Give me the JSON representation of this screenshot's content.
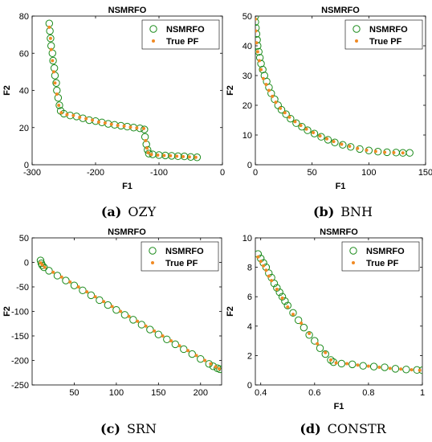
{
  "captions": [
    {
      "label": "(a)",
      "name": "OZY"
    },
    {
      "label": "(b)",
      "name": "BNH"
    },
    {
      "label": "(c)",
      "name": "SRN"
    },
    {
      "label": "(d)",
      "name": "CONSTR"
    }
  ],
  "colors": {
    "nsmrfo": "#1a8a1a",
    "true_pf": "#f08a24",
    "axis": "#000000"
  },
  "chart_data": [
    {
      "type": "scatter",
      "title": "NSMRFO",
      "xlabel": "F1",
      "ylabel": "F2",
      "xlim": [
        -300,
        0
      ],
      "ylim": [
        0,
        80
      ],
      "xticks": [
        "-300",
        "-200",
        "-100",
        "0"
      ],
      "yticks": [
        "0",
        "20",
        "40",
        "60",
        "80"
      ],
      "legend": "top-right",
      "series": [
        {
          "name": "NSMRFO",
          "marker": "open-circle",
          "points": [
            [
              -273,
              76
            ],
            [
              -272,
              72
            ],
            [
              -271,
              68
            ],
            [
              -270,
              64
            ],
            [
              -268,
              60
            ],
            [
              -267,
              56
            ],
            [
              -265,
              52
            ],
            [
              -264,
              48
            ],
            [
              -262,
              44
            ],
            [
              -261,
              40
            ],
            [
              -259,
              36
            ],
            [
              -257,
              32
            ],
            [
              -255,
              29
            ],
            [
              -250,
              27.5
            ],
            [
              -240,
              26.5
            ],
            [
              -230,
              26
            ],
            [
              -220,
              25
            ],
            [
              -210,
              24
            ],
            [
              -200,
              23.5
            ],
            [
              -190,
              22.8
            ],
            [
              -180,
              22
            ],
            [
              -170,
              21.5
            ],
            [
              -160,
              21
            ],
            [
              -150,
              20.5
            ],
            [
              -140,
              20
            ],
            [
              -130,
              19.6
            ],
            [
              -123,
              19
            ],
            [
              -122,
              15
            ],
            [
              -120,
              11
            ],
            [
              -118,
              8
            ],
            [
              -116,
              6
            ],
            [
              -110,
              5.6
            ],
            [
              -100,
              5.2
            ],
            [
              -90,
              5
            ],
            [
              -80,
              4.8
            ],
            [
              -70,
              4.6
            ],
            [
              -60,
              4.5
            ],
            [
              -50,
              4.2
            ],
            [
              -40,
              4
            ]
          ]
        },
        {
          "name": "True PF",
          "marker": "dot",
          "points": [
            [
              -273,
              74
            ],
            [
              -271,
              68
            ],
            [
              -270,
              62
            ],
            [
              -268,
              56
            ],
            [
              -266,
              50
            ],
            [
              -264,
              44
            ],
            [
              -261,
              38
            ],
            [
              -258,
              32
            ],
            [
              -254,
              28
            ],
            [
              -245,
              27
            ],
            [
              -235,
              26.5
            ],
            [
              -225,
              25.5
            ],
            [
              -215,
              24.8
            ],
            [
              -205,
              24
            ],
            [
              -195,
              23
            ],
            [
              -185,
              22.5
            ],
            [
              -175,
              21.8
            ],
            [
              -165,
              21.2
            ],
            [
              -155,
              20.8
            ],
            [
              -145,
              20.2
            ],
            [
              -135,
              19.8
            ],
            [
              -124,
              19.5
            ],
            [
              -121,
              13
            ],
            [
              -119,
              9
            ],
            [
              -117,
              6.5
            ],
            [
              -112,
              5.5
            ],
            [
              -102,
              5.2
            ],
            [
              -92,
              5
            ],
            [
              -82,
              4.8
            ],
            [
              -72,
              4.6
            ],
            [
              -62,
              4.4
            ],
            [
              -52,
              4.2
            ],
            [
              -42,
              4
            ]
          ]
        }
      ]
    },
    {
      "type": "scatter",
      "title": "NSMRFO",
      "xlabel": "F1",
      "ylabel": "F2",
      "xlim": [
        0,
        150
      ],
      "ylim": [
        0,
        50
      ],
      "xticks": [
        "0",
        "50",
        "100",
        "150"
      ],
      "yticks": [
        "0",
        "10",
        "20",
        "30",
        "40",
        "50"
      ],
      "legend": "top-right",
      "series": [
        {
          "name": "NSMRFO",
          "marker": "open-circle",
          "points": [
            [
              0,
              50
            ],
            [
              0,
              48
            ],
            [
              0.5,
              46
            ],
            [
              1,
              44
            ],
            [
              1.5,
              42
            ],
            [
              2,
              40
            ],
            [
              3,
              38
            ],
            [
              4,
              36
            ],
            [
              5,
              34
            ],
            [
              6.5,
              32
            ],
            [
              8,
              30
            ],
            [
              10,
              28
            ],
            [
              12,
              26
            ],
            [
              14,
              24
            ],
            [
              17,
              22
            ],
            [
              20,
              20
            ],
            [
              23,
              18.5
            ],
            [
              27,
              17
            ],
            [
              31,
              15.5
            ],
            [
              36,
              14
            ],
            [
              41,
              12.8
            ],
            [
              46,
              11.6
            ],
            [
              52,
              10.5
            ],
            [
              58,
              9.4
            ],
            [
              64,
              8.4
            ],
            [
              70,
              7.5
            ],
            [
              77,
              6.7
            ],
            [
              84,
              6
            ],
            [
              92,
              5.3
            ],
            [
              100,
              4.8
            ],
            [
              108,
              4.4
            ],
            [
              116,
              4.2
            ],
            [
              124,
              4.1
            ],
            [
              130,
              4
            ],
            [
              136,
              4
            ]
          ]
        },
        {
          "name": "True PF",
          "marker": "dot",
          "points": [
            [
              0,
              49
            ],
            [
              0.3,
              45
            ],
            [
              1,
              41
            ],
            [
              2,
              38
            ],
            [
              3.5,
              35
            ],
            [
              5,
              32
            ],
            [
              7,
              29
            ],
            [
              9.5,
              27
            ],
            [
              12,
              25
            ],
            [
              15,
              23
            ],
            [
              18,
              21
            ],
            [
              22,
              19
            ],
            [
              26,
              17.5
            ],
            [
              30,
              16
            ],
            [
              35,
              14.5
            ],
            [
              40,
              13.2
            ],
            [
              45,
              12
            ],
            [
              51,
              10.8
            ],
            [
              57,
              9.7
            ],
            [
              63,
              8.7
            ],
            [
              69,
              7.8
            ],
            [
              76,
              6.9
            ],
            [
              83,
              6.2
            ],
            [
              90,
              5.5
            ],
            [
              98,
              4.9
            ],
            [
              106,
              4.5
            ],
            [
              114,
              4.2
            ],
            [
              122,
              4.1
            ],
            [
              130,
              4
            ]
          ]
        }
      ]
    },
    {
      "type": "scatter",
      "title": "NSMRFO",
      "xlabel": "",
      "ylabel": "F2",
      "xlim": [
        0,
        225
      ],
      "ylim": [
        -250,
        50
      ],
      "xticks": [
        "50",
        "100",
        "150",
        "200"
      ],
      "xtick_values": [
        50,
        100,
        150,
        200
      ],
      "yticks": [
        "-250",
        "-200",
        "-150",
        "-100",
        "-50",
        "0",
        "50"
      ],
      "legend": "top-right",
      "series": [
        {
          "name": "NSMRFO",
          "marker": "open-circle",
          "points": [
            [
              10,
              4
            ],
            [
              11,
              -2
            ],
            [
              12,
              -6
            ],
            [
              14,
              -10
            ],
            [
              20,
              -17
            ],
            [
              30,
              -27
            ],
            [
              40,
              -37
            ],
            [
              50,
              -47
            ],
            [
              60,
              -57
            ],
            [
              70,
              -67
            ],
            [
              80,
              -77
            ],
            [
              90,
              -87
            ],
            [
              100,
              -97
            ],
            [
              110,
              -107
            ],
            [
              120,
              -117
            ],
            [
              130,
              -127
            ],
            [
              140,
              -137
            ],
            [
              150,
              -147
            ],
            [
              160,
              -157
            ],
            [
              170,
              -167
            ],
            [
              180,
              -177
            ],
            [
              190,
              -187
            ],
            [
              200,
              -197
            ],
            [
              210,
              -207
            ],
            [
              215,
              -212
            ],
            [
              220,
              -216
            ],
            [
              223,
              -218
            ]
          ]
        },
        {
          "name": "True PF",
          "marker": "dot",
          "points": [
            [
              10,
              -1
            ],
            [
              12,
              -5
            ],
            [
              15,
              -10
            ],
            [
              25,
              -20
            ],
            [
              35,
              -30
            ],
            [
              45,
              -40
            ],
            [
              55,
              -50
            ],
            [
              65,
              -60
            ],
            [
              75,
              -70
            ],
            [
              85,
              -80
            ],
            [
              95,
              -90
            ],
            [
              105,
              -100
            ],
            [
              115,
              -110
            ],
            [
              125,
              -120
            ],
            [
              135,
              -130
            ],
            [
              145,
              -140
            ],
            [
              155,
              -150
            ],
            [
              165,
              -160
            ],
            [
              175,
              -170
            ],
            [
              185,
              -180
            ],
            [
              195,
              -190
            ],
            [
              205,
              -200
            ],
            [
              212,
              -207
            ],
            [
              218,
              -213
            ],
            [
              222,
              -217
            ]
          ]
        }
      ]
    },
    {
      "type": "scatter",
      "title": "NSMRFO",
      "xlabel": "F1",
      "ylabel": "F2",
      "xlim": [
        0.38,
        1.0
      ],
      "ylim": [
        0,
        10
      ],
      "xticks": [
        "0.4",
        "0.6",
        "0.8",
        "1"
      ],
      "xtick_values": [
        0.4,
        0.6,
        0.8,
        1.0
      ],
      "yticks": [
        "0",
        "2",
        "4",
        "6",
        "8",
        "10"
      ],
      "legend": "top-right",
      "series": [
        {
          "name": "NSMRFO",
          "marker": "open-circle",
          "points": [
            [
              0.39,
              8.9
            ],
            [
              0.4,
              8.6
            ],
            [
              0.41,
              8.3
            ],
            [
              0.42,
              8
            ],
            [
              0.43,
              7.6
            ],
            [
              0.44,
              7.3
            ],
            [
              0.45,
              6.9
            ],
            [
              0.46,
              6.6
            ],
            [
              0.47,
              6.3
            ],
            [
              0.48,
              6
            ],
            [
              0.49,
              5.7
            ],
            [
              0.5,
              5.4
            ],
            [
              0.52,
              4.9
            ],
            [
              0.54,
              4.4
            ],
            [
              0.56,
              3.9
            ],
            [
              0.58,
              3.4
            ],
            [
              0.6,
              3
            ],
            [
              0.62,
              2.5
            ],
            [
              0.64,
              2.1
            ],
            [
              0.66,
              1.7
            ],
            [
              0.67,
              1.55
            ],
            [
              0.7,
              1.45
            ],
            [
              0.74,
              1.4
            ],
            [
              0.78,
              1.3
            ],
            [
              0.82,
              1.25
            ],
            [
              0.86,
              1.2
            ],
            [
              0.9,
              1.1
            ],
            [
              0.94,
              1.05
            ],
            [
              0.98,
              1.02
            ],
            [
              1.0,
              1
            ]
          ]
        },
        {
          "name": "True PF",
          "marker": "dot",
          "points": [
            [
              0.39,
              8.7
            ],
            [
              0.4,
              8.4
            ],
            [
              0.41,
              8.1
            ],
            [
              0.42,
              7.8
            ],
            [
              0.43,
              7.4
            ],
            [
              0.44,
              7.1
            ],
            [
              0.46,
              6.5
            ],
            [
              0.48,
              5.9
            ],
            [
              0.5,
              5.3
            ],
            [
              0.52,
              4.8
            ],
            [
              0.55,
              4.2
            ],
            [
              0.58,
              3.5
            ],
            [
              0.61,
              2.8
            ],
            [
              0.64,
              2.2
            ],
            [
              0.66,
              1.7
            ],
            [
              0.68,
              1.5
            ],
            [
              0.72,
              1.45
            ],
            [
              0.76,
              1.35
            ],
            [
              0.8,
              1.28
            ],
            [
              0.84,
              1.2
            ],
            [
              0.88,
              1.13
            ],
            [
              0.92,
              1.08
            ],
            [
              0.96,
              1.03
            ],
            [
              0.99,
              1
            ]
          ]
        }
      ]
    }
  ]
}
